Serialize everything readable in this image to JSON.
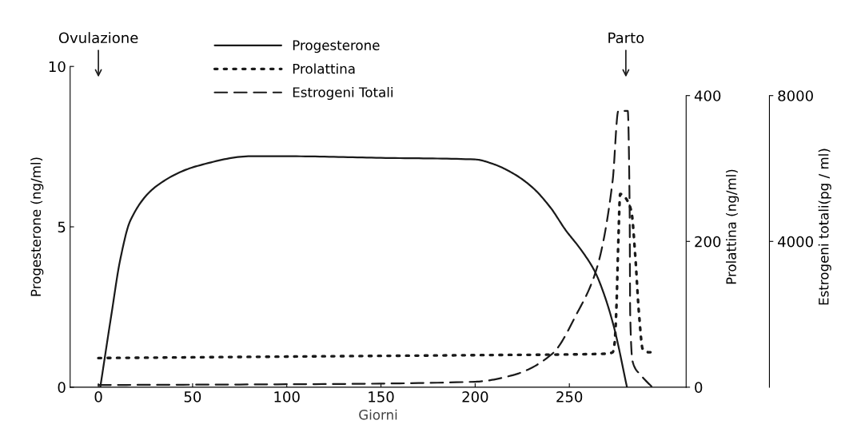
{
  "chart_data": {
    "type": "line",
    "xlabel": "Giorni",
    "ylabel": "Progesterone (ng/ml)",
    "y2label": "Prolattina (ng/ml)",
    "y3label": "Estrogeni totali(pg / ml)",
    "xlim": [
      -15,
      312
    ],
    "xticks": [
      0,
      50,
      100,
      150,
      200,
      250
    ],
    "ylim": [
      0,
      10
    ],
    "yticks": [
      0,
      5,
      10
    ],
    "y2lim": [
      0,
      440
    ],
    "y2ticks": [
      0,
      200,
      400
    ],
    "y3lim": [
      0,
      8800
    ],
    "y3ticks": [
      4000,
      8000
    ],
    "legend": "top",
    "grid": false,
    "annotations": [
      {
        "text": "Ovulazione",
        "x": 0
      },
      {
        "text": "Parto",
        "x": 280
      }
    ],
    "series": [
      {
        "name": "Progesterone",
        "color": "#1a1a1a",
        "line_style": "solid",
        "x": [
          1,
          7,
          11.5,
          17,
          31.5,
          52.7,
          81,
          100,
          150,
          200,
          210,
          220,
          230,
          240,
          248,
          256,
          263.6,
          269,
          274,
          280.6
        ],
        "values": [
          0,
          2.3,
          3.95,
          5.2,
          6.3,
          6.9,
          7.2,
          7.2,
          7.15,
          7.1,
          6.95,
          6.67,
          6.25,
          5.6,
          4.9,
          4.3,
          3.6,
          2.8,
          1.8,
          0
        ]
      },
      {
        "name": "Prolattina",
        "color": "#1a1a1a",
        "line_style": "dotted",
        "axis": "y2",
        "x": [
          0,
          100,
          200,
          270,
          273,
          274,
          275,
          276,
          277,
          279,
          281,
          283,
          285,
          287,
          289,
          292,
          294
        ],
        "values": [
          40,
          42,
          44,
          46,
          48,
          60,
          110,
          200,
          265,
          262,
          255,
          240,
          180,
          100,
          52,
          48,
          48
        ]
      },
      {
        "name": "Estrogeni Totali",
        "color": "#1a1a1a",
        "line_style": "dashed",
        "axis": "y3",
        "x": [
          0,
          100,
          200,
          220,
          241,
          254,
          264.5,
          273,
          276,
          281,
          282,
          282.3,
          283.6,
          288,
          294
        ],
        "values": [
          60,
          80,
          150,
          330,
          920,
          2020,
          3250,
          5670,
          7580,
          7580,
          4950,
          2020,
          700,
          330,
          0
        ]
      }
    ]
  }
}
